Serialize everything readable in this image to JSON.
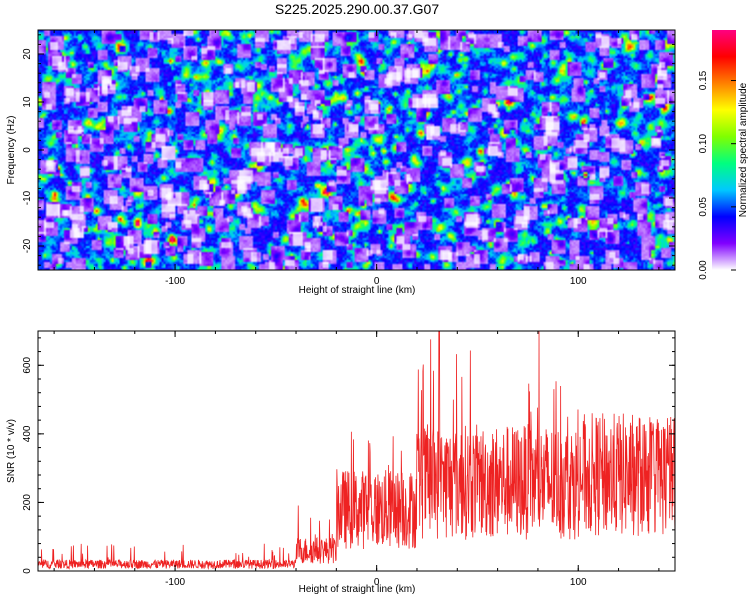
{
  "title": "S225.2025.290.00.37.G07",
  "chart_data": [
    {
      "type": "heatmap",
      "xlabel": "Height of straight line (km)",
      "ylabel": "Frequency (Hz)",
      "xlim": [
        -168,
        148
      ],
      "ylim": [
        -25,
        25
      ],
      "xticks": [
        -100,
        0,
        100
      ],
      "yticks": [
        -20,
        -10,
        0,
        10,
        20
      ],
      "colorbar": {
        "label": "Normalized spectral amplitude",
        "range": [
          0,
          0.19
        ],
        "ticks": [
          0.0,
          0.05,
          0.1,
          0.15
        ],
        "tick_labels": [
          "0.00",
          "0.05",
          "0.10",
          "0.15"
        ],
        "colors": [
          "#ffffff",
          "#8000ff",
          "#0000ff",
          "#00c8ff",
          "#00ff80",
          "#80ff00",
          "#ffff00",
          "#ff8000",
          "#ff0000",
          "#ff0080"
        ]
      },
      "hotspots": [
        {
          "x": 103,
          "y": -5,
          "value": 0.19
        },
        {
          "x": 3,
          "y": 0,
          "value": 0.1
        },
        {
          "x": -15,
          "y": 0.5,
          "value": 0.09
        },
        {
          "x": 67,
          "y": 4,
          "value": 0.09
        },
        {
          "x": -35,
          "y": 5,
          "value": 0.08
        }
      ]
    },
    {
      "type": "line",
      "xlabel": "Height of straight line (km)",
      "ylabel": "SNR (10 * v/v)",
      "xlim": [
        -168,
        148
      ],
      "ylim": [
        0,
        700
      ],
      "xticks": [
        -100,
        0,
        100
      ],
      "yticks": [
        0,
        200,
        400,
        600
      ],
      "color": "#ee2222",
      "segments": [
        {
          "x_range": [
            -168,
            -40
          ],
          "mean": 20,
          "max": 80
        },
        {
          "x_range": [
            -40,
            -20
          ],
          "mean": 60,
          "max": 200
        },
        {
          "x_range": [
            -20,
            20
          ],
          "mean": 180,
          "max": 420
        },
        {
          "x_range": [
            20,
            100
          ],
          "mean": 260,
          "max": 700
        },
        {
          "x_range": [
            100,
            148
          ],
          "mean": 280,
          "max": 430
        }
      ],
      "peak": {
        "x": 31,
        "y": 700
      }
    }
  ]
}
